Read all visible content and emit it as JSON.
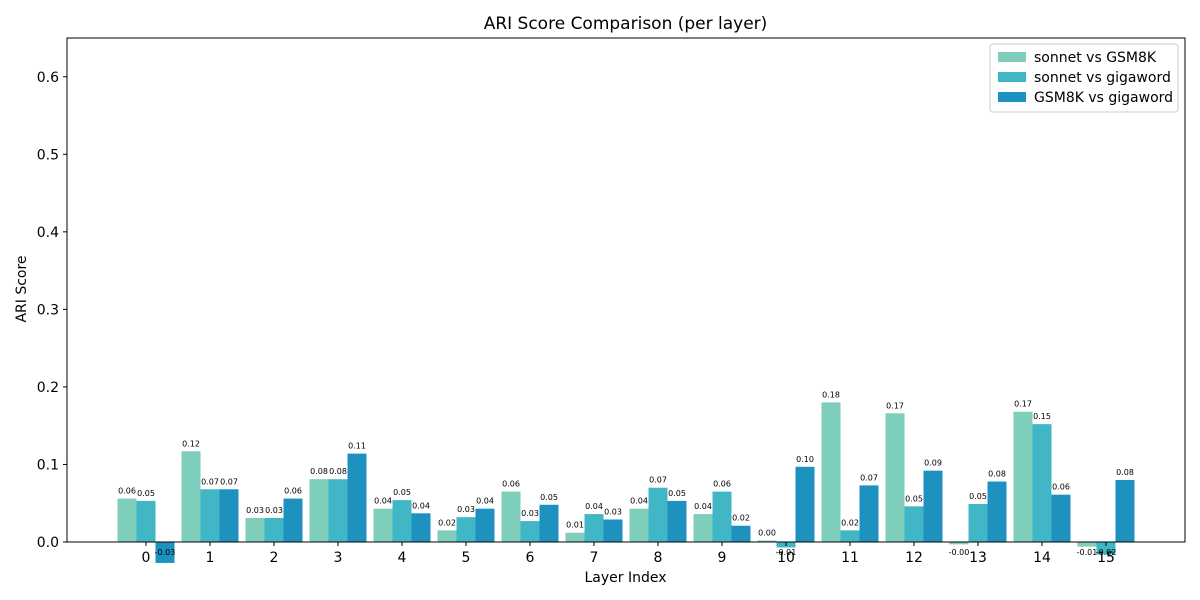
{
  "chart_data": {
    "type": "bar",
    "title": "ARI Score Comparison (per layer)",
    "xlabel": "Layer Index",
    "ylabel": "ARI Score",
    "ylim": [
      0,
      0.65
    ],
    "yticks": [
      "0.0",
      "0.1",
      "0.2",
      "0.3",
      "0.4",
      "0.5",
      "0.6"
    ],
    "categories": [
      "0",
      "1",
      "2",
      "3",
      "4",
      "5",
      "6",
      "7",
      "8",
      "9",
      "10",
      "11",
      "12",
      "13",
      "14",
      "15"
    ],
    "grid": false,
    "legend_position": "top-right",
    "series": [
      {
        "name": "sonnet vs GSM8K",
        "color": "#7fcdbb",
        "values": [
          0.056,
          0.117,
          0.031,
          0.081,
          0.043,
          0.015,
          0.065,
          0.012,
          0.043,
          0.036,
          0.002,
          0.18,
          0.166,
          -0.003,
          0.168,
          -0.006
        ],
        "labels": [
          "0.06",
          "0.12",
          "0.03",
          "0.08",
          "0.04",
          "0.02",
          "0.06",
          "0.01",
          "0.04",
          "0.04",
          "0.00",
          "0.18",
          "0.17",
          "-0.00",
          "0.17",
          "-0.01"
        ]
      },
      {
        "name": "sonnet vs gigaword",
        "color": "#41b6c4",
        "values": [
          0.053,
          0.068,
          0.031,
          0.081,
          0.054,
          0.032,
          0.027,
          0.036,
          0.07,
          0.065,
          -0.007,
          0.015,
          0.046,
          0.049,
          0.152,
          -0.016
        ],
        "labels": [
          "0.05",
          "0.07",
          "0.03",
          "0.08",
          "0.05",
          "0.03",
          "0.03",
          "0.04",
          "0.07",
          "0.06",
          "-0.01",
          "0.02",
          "0.05",
          "0.05",
          "0.15",
          "-0.02"
        ]
      },
      {
        "name": "GSM8K vs gigaword",
        "color": "#1d91c0",
        "values": [
          -0.027,
          0.068,
          0.056,
          0.114,
          0.037,
          0.043,
          0.048,
          0.029,
          0.053,
          0.021,
          0.097,
          0.073,
          0.092,
          0.078,
          0.061,
          0.08
        ],
        "labels": [
          "-0.03",
          "0.07",
          "0.06",
          "0.11",
          "0.04",
          "0.04",
          "0.05",
          "0.03",
          "0.05",
          "0.02",
          "0.10",
          "0.07",
          "0.09",
          "0.08",
          "0.06",
          "0.08"
        ]
      }
    ]
  }
}
